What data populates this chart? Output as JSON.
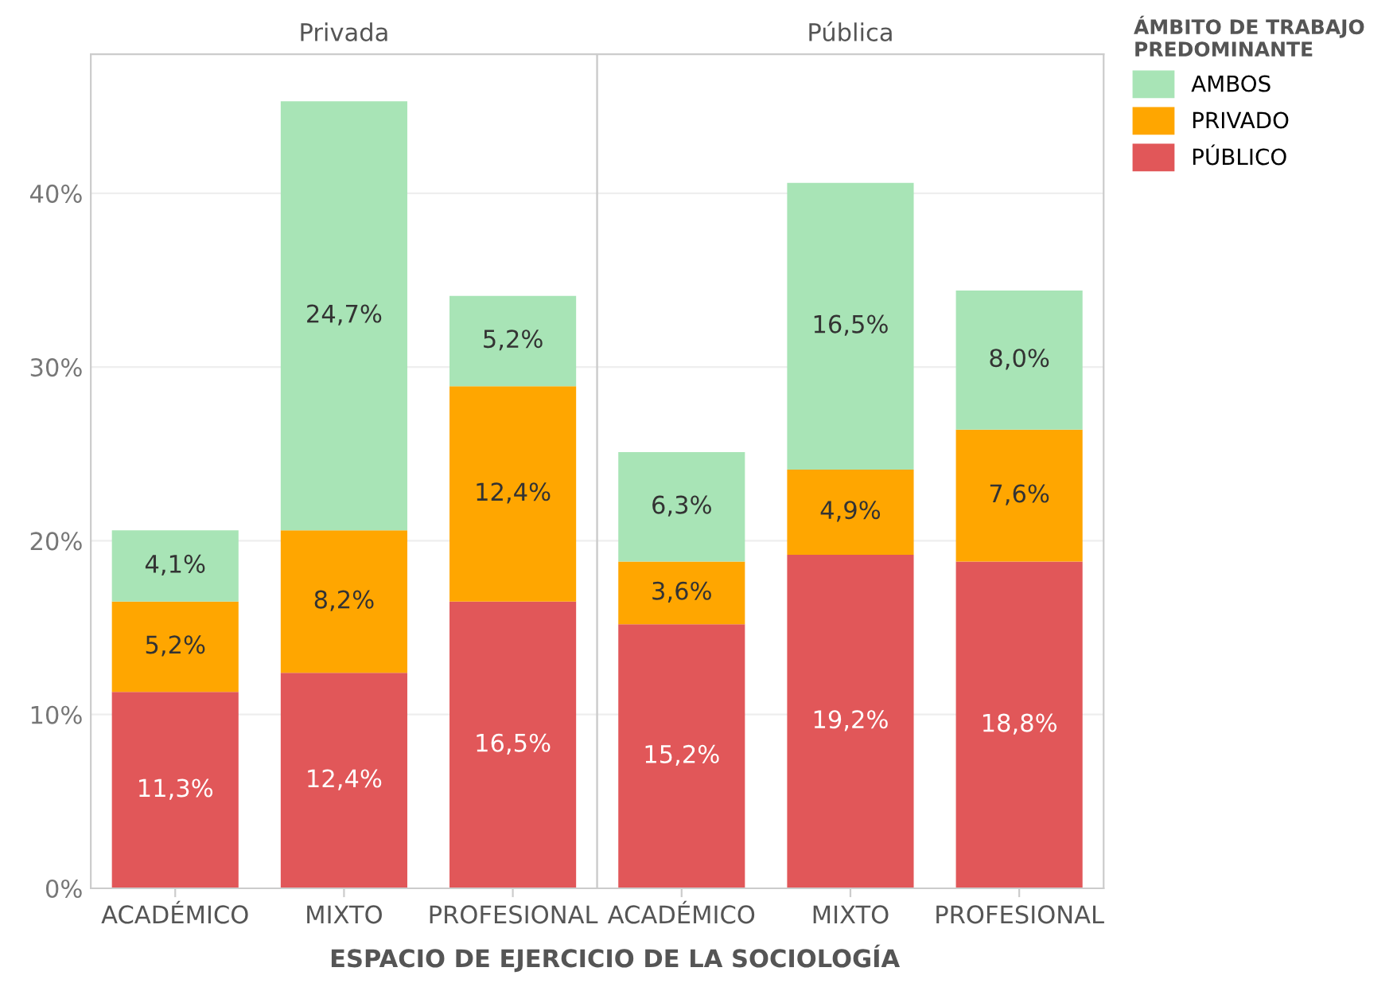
{
  "chart_data": [
    {
      "type": "bar",
      "stacked": true,
      "title": "Privada",
      "xlabel": "ESPACIO DE EJERCICIO DE LA SOCIOLOGÍA",
      "categories": [
        "ACADÉMICO",
        "MIXTO",
        "PROFESIONAL"
      ],
      "ylim": [
        0,
        48
      ],
      "yticks": [
        {
          "value": 0,
          "label": "0%"
        },
        {
          "value": 10,
          "label": "10%"
        },
        {
          "value": 20,
          "label": "20%"
        },
        {
          "value": 30,
          "label": "30%"
        },
        {
          "value": 40,
          "label": "40%"
        }
      ],
      "grid": "y",
      "series": [
        {
          "color": "#e15759",
          "values": [
            11.3,
            12.4,
            16.5
          ],
          "value_labels": [
            "11,3%",
            "12,4%",
            "16,5%"
          ]
        },
        {
          "color": "#ffa600",
          "values": [
            5.2,
            8.2,
            12.4
          ],
          "value_labels": [
            "5,2%",
            "8,2%",
            "12,4%"
          ]
        },
        {
          "color": "#a8e4b6",
          "values": [
            4.1,
            24.7,
            5.2
          ],
          "value_labels": [
            "4,1%",
            "24,7%",
            "5,2%"
          ]
        }
      ]
    },
    {
      "type": "bar",
      "stacked": true,
      "title": "Pública",
      "categories": [
        "ACADÉMICO",
        "MIXTO",
        "PROFESIONAL"
      ],
      "ylim": [
        0,
        48
      ],
      "yticks": [
        {
          "value": 0,
          "label": null
        },
        {
          "value": 10,
          "label": null
        },
        {
          "value": 20,
          "label": null
        },
        {
          "value": 30,
          "label": null
        },
        {
          "value": 40,
          "label": null
        }
      ],
      "grid": "y",
      "tick_labels": "x",
      "legend": "right",
      "legend_title": "ÁMBITO DE TRABAJO\nPREDOMINANTE",
      "series": [
        {
          "name": "PÚBLICO",
          "color": "#e15759",
          "values": [
            15.2,
            19.2,
            18.8
          ],
          "value_labels": [
            "15,2%",
            "19,2%",
            "18,8%"
          ]
        },
        {
          "name": "PRIVADO",
          "color": "#ffa600",
          "values": [
            3.6,
            4.9,
            7.6
          ],
          "value_labels": [
            "3,6%",
            "4,9%",
            "7,6%"
          ]
        },
        {
          "name": "AMBOS",
          "color": "#a8e4b6",
          "values": [
            6.3,
            16.5,
            8.0
          ],
          "value_labels": [
            "6,3%",
            "16,5%",
            "8,0%"
          ]
        }
      ]
    }
  ]
}
